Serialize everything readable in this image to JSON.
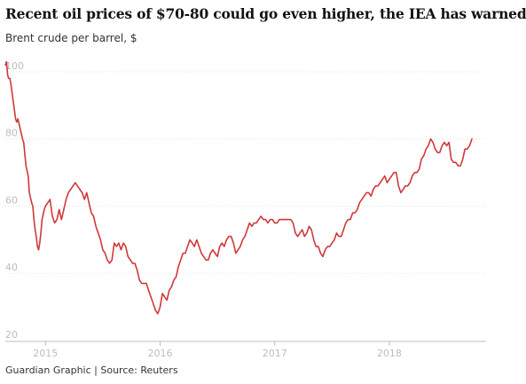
{
  "title": "Recent oil prices of $70-80 could go even higher, the IEA has warned",
  "subtitle": "Brent crude per barrel, $",
  "footer": "Guardian Graphic | Source: Reuters",
  "colors": {
    "line": "#d0383a",
    "axis_text": "#bdbdbd"
  },
  "chart_data": {
    "type": "line",
    "title": "Recent oil prices of $70-80 could go even higher, the IEA has warned",
    "subtitle": "Brent crude per barrel, $",
    "ylim": [
      20,
      105
    ],
    "xlim": [
      2014.65,
      2018.72
    ],
    "yticks": [
      20,
      40,
      60,
      80,
      100
    ],
    "xticks": [
      {
        "value": 2015,
        "label": "2015"
      },
      {
        "value": 2016,
        "label": "2016"
      },
      {
        "value": 2017,
        "label": "2017"
      },
      {
        "value": 2018,
        "label": "2018"
      }
    ],
    "grid": "horizontal",
    "series": [
      {
        "points": [
          [
            2014.65,
            102
          ],
          [
            2014.66,
            103
          ],
          [
            2014.67,
            99
          ],
          [
            2014.68,
            98
          ],
          [
            2014.69,
            98
          ],
          [
            2014.7,
            96
          ],
          [
            2014.72,
            91
          ],
          [
            2014.74,
            86
          ],
          [
            2014.75,
            85
          ],
          [
            2014.76,
            86
          ],
          [
            2014.78,
            83
          ],
          [
            2014.8,
            80
          ],
          [
            2014.81,
            79
          ],
          [
            2014.83,
            72
          ],
          [
            2014.85,
            69
          ],
          [
            2014.86,
            64
          ],
          [
            2014.88,
            61
          ],
          [
            2014.89,
            60
          ],
          [
            2014.9,
            56
          ],
          [
            2014.91,
            53
          ],
          [
            2014.92,
            51
          ],
          [
            2014.93,
            48
          ],
          [
            2014.94,
            47
          ],
          [
            2014.95,
            49
          ],
          [
            2014.96,
            52
          ],
          [
            2014.97,
            56
          ],
          [
            2014.99,
            59
          ],
          [
            2015.0,
            60
          ],
          [
            2015.02,
            61
          ],
          [
            2015.04,
            62
          ],
          [
            2015.06,
            57
          ],
          [
            2015.08,
            55
          ],
          [
            2015.1,
            56
          ],
          [
            2015.12,
            59
          ],
          [
            2015.14,
            56
          ],
          [
            2015.16,
            59
          ],
          [
            2015.18,
            62
          ],
          [
            2015.2,
            64
          ],
          [
            2015.22,
            65
          ],
          [
            2015.24,
            66
          ],
          [
            2015.26,
            67
          ],
          [
            2015.28,
            66
          ],
          [
            2015.3,
            65
          ],
          [
            2015.32,
            64
          ],
          [
            2015.34,
            62
          ],
          [
            2015.36,
            64
          ],
          [
            2015.38,
            61
          ],
          [
            2015.4,
            58
          ],
          [
            2015.42,
            57
          ],
          [
            2015.44,
            54
          ],
          [
            2015.46,
            52
          ],
          [
            2015.48,
            50
          ],
          [
            2015.5,
            47
          ],
          [
            2015.52,
            46
          ],
          [
            2015.54,
            44
          ],
          [
            2015.56,
            43
          ],
          [
            2015.58,
            44
          ],
          [
            2015.6,
            49
          ],
          [
            2015.62,
            48
          ],
          [
            2015.64,
            49
          ],
          [
            2015.66,
            47
          ],
          [
            2015.68,
            49
          ],
          [
            2015.7,
            48
          ],
          [
            2015.72,
            45
          ],
          [
            2015.74,
            44
          ],
          [
            2015.76,
            43
          ],
          [
            2015.78,
            43
          ],
          [
            2015.8,
            41
          ],
          [
            2015.82,
            38
          ],
          [
            2015.84,
            37
          ],
          [
            2015.86,
            37
          ],
          [
            2015.88,
            37
          ],
          [
            2015.9,
            35
          ],
          [
            2015.92,
            33
          ],
          [
            2015.94,
            31
          ],
          [
            2015.96,
            29
          ],
          [
            2015.98,
            28
          ],
          [
            2016.0,
            30
          ],
          [
            2016.02,
            34
          ],
          [
            2016.04,
            33
          ],
          [
            2016.06,
            32
          ],
          [
            2016.08,
            35
          ],
          [
            2016.1,
            36
          ],
          [
            2016.12,
            38
          ],
          [
            2016.14,
            39
          ],
          [
            2016.16,
            42
          ],
          [
            2016.18,
            44
          ],
          [
            2016.2,
            46
          ],
          [
            2016.22,
            46
          ],
          [
            2016.24,
            48
          ],
          [
            2016.26,
            50
          ],
          [
            2016.28,
            49
          ],
          [
            2016.3,
            48
          ],
          [
            2016.32,
            50
          ],
          [
            2016.34,
            48
          ],
          [
            2016.36,
            46
          ],
          [
            2016.38,
            45
          ],
          [
            2016.4,
            44
          ],
          [
            2016.42,
            44
          ],
          [
            2016.44,
            46
          ],
          [
            2016.46,
            47
          ],
          [
            2016.48,
            46
          ],
          [
            2016.5,
            45
          ],
          [
            2016.52,
            48
          ],
          [
            2016.54,
            49
          ],
          [
            2016.56,
            48
          ],
          [
            2016.58,
            50
          ],
          [
            2016.6,
            51
          ],
          [
            2016.62,
            51
          ],
          [
            2016.64,
            49
          ],
          [
            2016.66,
            46
          ],
          [
            2016.68,
            47
          ],
          [
            2016.7,
            48
          ],
          [
            2016.72,
            50
          ],
          [
            2016.74,
            51
          ],
          [
            2016.76,
            53
          ],
          [
            2016.78,
            55
          ],
          [
            2016.8,
            54
          ],
          [
            2016.82,
            55
          ],
          [
            2016.84,
            55
          ],
          [
            2016.86,
            56
          ],
          [
            2016.88,
            57
          ],
          [
            2016.9,
            56
          ],
          [
            2016.92,
            56
          ],
          [
            2016.94,
            55
          ],
          [
            2016.96,
            56
          ],
          [
            2016.98,
            56
          ],
          [
            2017.0,
            55
          ],
          [
            2017.02,
            55
          ],
          [
            2017.04,
            56
          ],
          [
            2017.06,
            56
          ],
          [
            2017.08,
            56
          ],
          [
            2017.1,
            56
          ],
          [
            2017.12,
            56
          ],
          [
            2017.14,
            56
          ],
          [
            2017.16,
            55
          ],
          [
            2017.18,
            52
          ],
          [
            2017.2,
            51
          ],
          [
            2017.22,
            52
          ],
          [
            2017.24,
            53
          ],
          [
            2017.26,
            51
          ],
          [
            2017.28,
            52
          ],
          [
            2017.3,
            54
          ],
          [
            2017.32,
            53
          ],
          [
            2017.34,
            50
          ],
          [
            2017.36,
            48
          ],
          [
            2017.38,
            48
          ],
          [
            2017.4,
            46
          ],
          [
            2017.42,
            45
          ],
          [
            2017.44,
            47
          ],
          [
            2017.46,
            48
          ],
          [
            2017.48,
            48
          ],
          [
            2017.5,
            49
          ],
          [
            2017.52,
            50
          ],
          [
            2017.54,
            52
          ],
          [
            2017.56,
            51
          ],
          [
            2017.58,
            51
          ],
          [
            2017.6,
            53
          ],
          [
            2017.62,
            55
          ],
          [
            2017.64,
            56
          ],
          [
            2017.66,
            56
          ],
          [
            2017.68,
            58
          ],
          [
            2017.7,
            58
          ],
          [
            2017.72,
            59
          ],
          [
            2017.74,
            61
          ],
          [
            2017.76,
            62
          ],
          [
            2017.78,
            63
          ],
          [
            2017.8,
            64
          ],
          [
            2017.82,
            64
          ],
          [
            2017.84,
            63
          ],
          [
            2017.86,
            65
          ],
          [
            2017.88,
            66
          ],
          [
            2017.9,
            66
          ],
          [
            2017.92,
            67
          ],
          [
            2017.94,
            68
          ],
          [
            2017.96,
            69
          ],
          [
            2017.98,
            67
          ],
          [
            2018.0,
            68
          ],
          [
            2018.02,
            69
          ],
          [
            2018.04,
            70
          ],
          [
            2018.06,
            70
          ],
          [
            2018.08,
            66
          ],
          [
            2018.1,
            64
          ],
          [
            2018.12,
            65
          ],
          [
            2018.14,
            66
          ],
          [
            2018.16,
            66
          ],
          [
            2018.18,
            67
          ],
          [
            2018.2,
            69
          ],
          [
            2018.22,
            70
          ],
          [
            2018.24,
            70
          ],
          [
            2018.26,
            71
          ],
          [
            2018.28,
            74
          ],
          [
            2018.3,
            75
          ],
          [
            2018.32,
            77
          ],
          [
            2018.34,
            78
          ],
          [
            2018.36,
            80
          ],
          [
            2018.38,
            79
          ],
          [
            2018.4,
            77
          ],
          [
            2018.42,
            76
          ],
          [
            2018.44,
            76
          ],
          [
            2018.46,
            78
          ],
          [
            2018.48,
            79
          ],
          [
            2018.5,
            78
          ],
          [
            2018.52,
            79
          ],
          [
            2018.54,
            74
          ],
          [
            2018.56,
            73
          ],
          [
            2018.58,
            73
          ],
          [
            2018.6,
            72
          ],
          [
            2018.62,
            72
          ],
          [
            2018.64,
            74
          ],
          [
            2018.66,
            77
          ],
          [
            2018.68,
            77
          ],
          [
            2018.7,
            78
          ],
          [
            2018.72,
            80
          ]
        ]
      }
    ]
  }
}
